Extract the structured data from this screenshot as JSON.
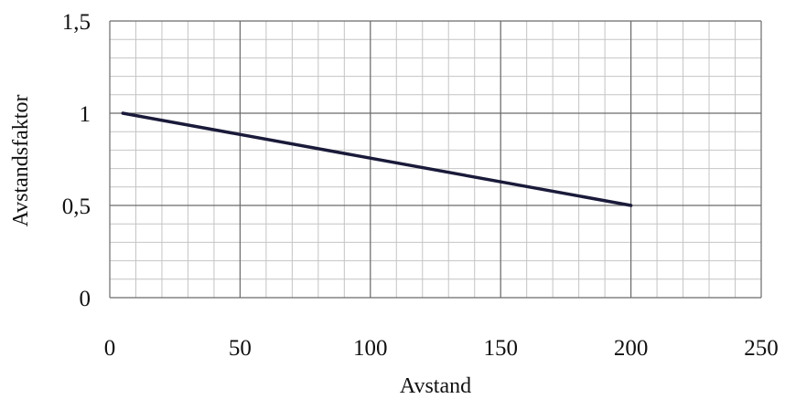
{
  "chart_data": {
    "type": "line",
    "title": "",
    "xlabel": "Avstand",
    "ylabel": "Avstandsfaktor",
    "xlim": [
      0,
      250
    ],
    "ylim": [
      0,
      1.5
    ],
    "x_ticks": [
      0,
      50,
      100,
      150,
      200,
      250
    ],
    "x_tick_labels": [
      "0",
      "50",
      "100",
      "150",
      "200",
      "250"
    ],
    "y_ticks": [
      0,
      0.5,
      1,
      1.5
    ],
    "y_tick_labels": [
      "0",
      "0,5",
      "1",
      "1,5"
    ],
    "grid": true,
    "minor_grid": true,
    "x_minor_step": 10,
    "y_minor_step": 0.1,
    "line_color": "#1a1a3a",
    "grid_major_color": "#6b6b6b",
    "grid_minor_color": "#c4c4c4",
    "series": [
      {
        "x": [
          5,
          200
        ],
        "y": [
          1.0,
          0.5
        ]
      }
    ]
  }
}
